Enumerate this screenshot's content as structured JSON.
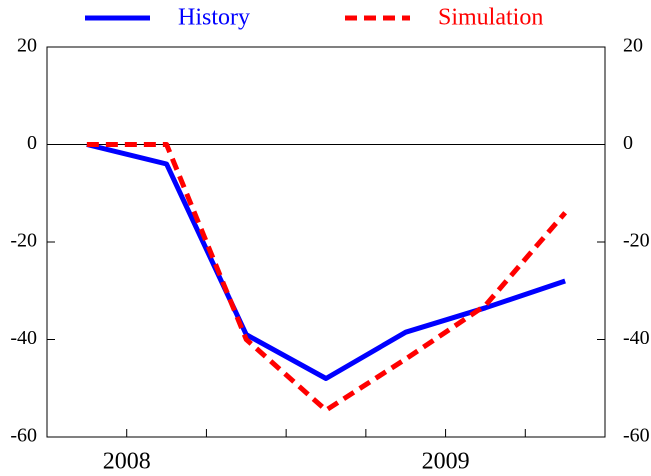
{
  "chart_data": {
    "type": "line",
    "x": [
      2007.875,
      2008.125,
      2008.375,
      2008.625,
      2008.875,
      2009.125,
      2009.375
    ],
    "series": [
      {
        "name": "History",
        "color": "#0000ff",
        "dash": false,
        "values": [
          0,
          -4,
          -39,
          -48,
          -38.5,
          -33.5,
          -28
        ]
      },
      {
        "name": "Simulation",
        "color": "#ff0000",
        "dash": true,
        "values": [
          0,
          0,
          -40,
          -54.5,
          -44,
          -33,
          -14
        ]
      }
    ],
    "xlim": [
      2007.75,
      2009.5
    ],
    "xticks": [
      2008,
      2009
    ],
    "xminorticks": [
      2008.25,
      2008.5,
      2008.75,
      2009.25
    ],
    "ylim": [
      -60,
      20
    ],
    "yticks": [
      -60,
      -40,
      -20,
      0,
      20
    ],
    "y2lim": [
      -60,
      20
    ],
    "y2ticks": [
      -60,
      -40,
      -20,
      0,
      20
    ],
    "zero_line": true
  }
}
